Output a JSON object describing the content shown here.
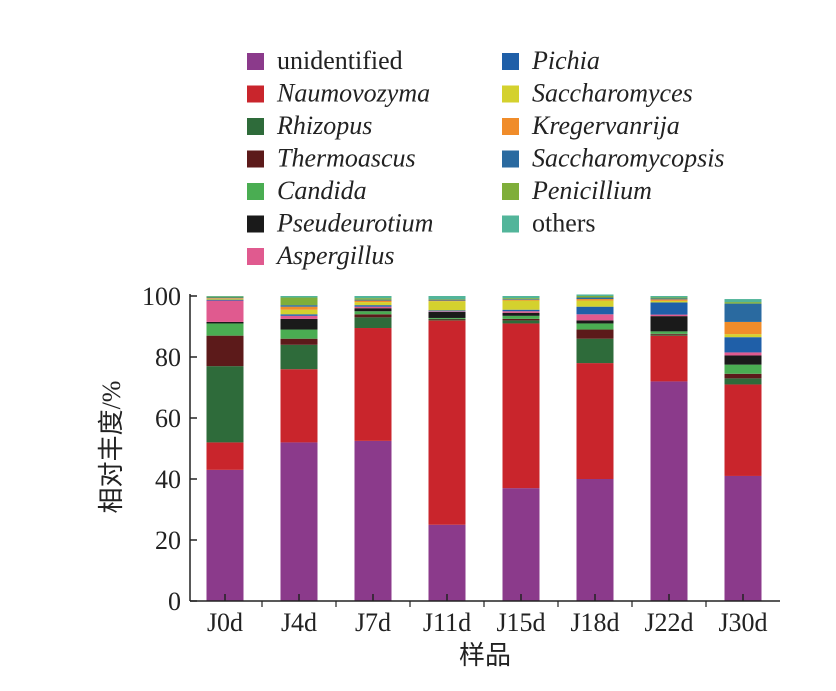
{
  "chart_data": {
    "type": "bar",
    "stacked": true,
    "title": "",
    "xlabel": "样品",
    "ylabel": "相对丰度/%",
    "ylim": [
      0,
      100
    ],
    "yticks": [
      "0",
      "20",
      "40",
      "60",
      "80",
      "100"
    ],
    "grid": false,
    "legend_position": "top",
    "categories": [
      "J0d",
      "J4d",
      "J7d",
      "J11d",
      "J15d",
      "J18d",
      "J22d",
      "J30d"
    ],
    "series": [
      {
        "name": "unidentified",
        "italic": false,
        "color": "#8b3a8b",
        "values": [
          43,
          52,
          52.5,
          25,
          37,
          40,
          72,
          41
        ]
      },
      {
        "name": "Naumovozyma",
        "italic": true,
        "color": "#c9252c",
        "values": [
          9,
          24,
          37,
          67,
          54,
          38,
          15,
          30
        ]
      },
      {
        "name": "Rhizopus",
        "italic": true,
        "color": "#2e6b3a",
        "values": [
          25,
          8,
          3.5,
          0.3,
          1,
          8,
          0.3,
          2
        ]
      },
      {
        "name": "Thermoascus",
        "italic": true,
        "color": "#5c1a1a",
        "values": [
          10,
          2,
          1,
          0.2,
          0.5,
          3,
          0.3,
          1.5
        ]
      },
      {
        "name": "Candida",
        "italic": true,
        "color": "#4aad52",
        "values": [
          4,
          3,
          1,
          0.3,
          1,
          2,
          0.8,
          3
        ]
      },
      {
        "name": "Pseudeurotium",
        "italic": true,
        "color": "#1a1a1a",
        "values": [
          0.5,
          3.5,
          1,
          2,
          1,
          1,
          5,
          3
        ]
      },
      {
        "name": "Aspergillus",
        "italic": true,
        "color": "#e05a8f",
        "values": [
          7,
          1,
          0.5,
          0.2,
          0.5,
          2,
          0.5,
          1
        ]
      },
      {
        "name": "Pichia",
        "italic": true,
        "color": "#1f5fa8",
        "values": [
          0.3,
          0.5,
          0.5,
          0.3,
          0.5,
          2.5,
          4,
          5
        ]
      },
      {
        "name": "Saccharomyces",
        "italic": true,
        "color": "#d4d12e",
        "values": [
          0.3,
          1.5,
          1,
          3,
          3,
          2,
          0.5,
          1
        ]
      },
      {
        "name": "Kregervanrija",
        "italic": true,
        "color": "#f08c2a",
        "values": [
          0.2,
          1,
          0.5,
          0.2,
          0.3,
          0.5,
          0.5,
          4
        ]
      },
      {
        "name": "Saccharomycopsis",
        "italic": true,
        "color": "#2a6aa0",
        "values": [
          0.2,
          0.5,
          0.3,
          0.3,
          0.2,
          0.5,
          0.3,
          6
        ]
      },
      {
        "name": "Penicillium",
        "italic": true,
        "color": "#7fae3a",
        "values": [
          0.3,
          2.5,
          0.5,
          0.2,
          0.3,
          0.5,
          0.3,
          0.5
        ]
      },
      {
        "name": "others",
        "italic": false,
        "color": "#52b59a",
        "values": [
          0.2,
          0.5,
          0.7,
          1,
          0.7,
          0.5,
          0.5,
          1
        ]
      }
    ]
  }
}
